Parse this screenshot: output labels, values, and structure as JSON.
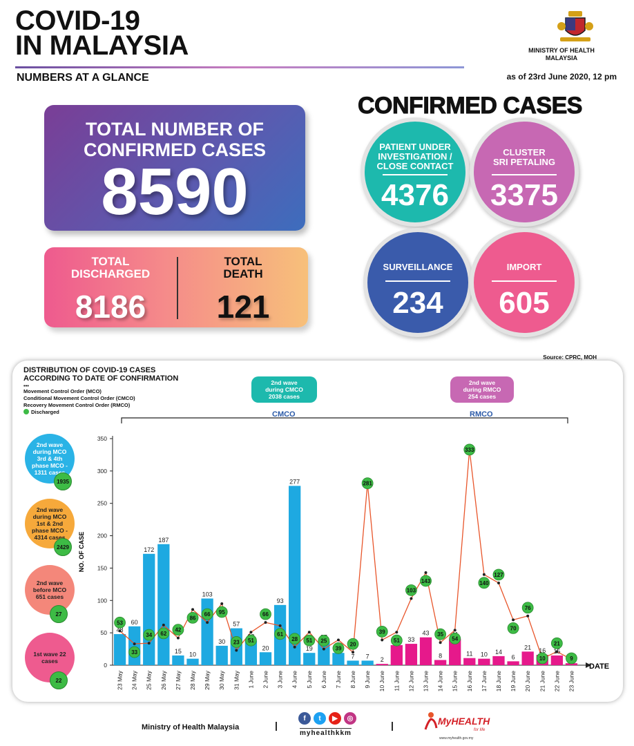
{
  "header": {
    "title_line1": "COVID-19",
    "title_line2": "IN MALAYSIA",
    "subtitle": "NUMBERS AT A GLANCE",
    "as_of": "as of 23rd June 2020, 12 pm",
    "ministry_line1": "MINISTRY OF HEALTH",
    "ministry_line2": "MALAYSIA"
  },
  "total_card": {
    "label_line1": "TOTAL NUMBER OF",
    "label_line2": "CONFIRMED CASES",
    "value": "8590"
  },
  "discharged": {
    "label_line1": "TOTAL",
    "label_line2": "DISCHARGED",
    "value": "8186"
  },
  "death": {
    "label_line1": "TOTAL",
    "label_line2": "DEATH",
    "value": "121"
  },
  "confirmed_cases": {
    "title": "CONFIRMED CASES",
    "pui": {
      "label_line1": "PATIENT UNDER",
      "label_line2": "INVESTIGATION /",
      "label_line3": "CLOSE CONTACT",
      "value": "4376",
      "color": "#1db9ad"
    },
    "cluster": {
      "label_line1": "CLUSTER",
      "label_line2": "SRI PETALING",
      "value": "3375",
      "color": "#c768b3"
    },
    "surveillance": {
      "label": "SURVEILLANCE",
      "value": "234",
      "color": "#3a5bab"
    },
    "import": {
      "label": "IMPORT",
      "value": "605",
      "color": "#ee5b8f"
    }
  },
  "source": "Source: CPRC, MOH",
  "chart_panel": {
    "title_line1": "DISTRIBUTION OF COVID-19 CASES",
    "title_line2": "ACCORDING TO DATE OF CONFIRMATION",
    "legend_marker": "•••",
    "legend_mco": "Movement Control Order (MCO)",
    "legend_cmco": "Conditional Movement Control Order (CMCO)",
    "legend_rmco": "Recovery Movement Control Order (RMCO)",
    "legend_discharged": "Discharged",
    "waves": [
      {
        "text": "2nd wave during MCO 3rd & 4th phase MCO - 1311 cases",
        "badge": "1935",
        "color": "#2ab3e6"
      },
      {
        "text": "2nd wave during MCO 1st & 2nd phase MCO - 4314 cases",
        "badge": "2429",
        "color": "#f6a93b"
      },
      {
        "text": "2nd wave before MCO 651 cases",
        "badge": "27",
        "color": "#f4877a"
      },
      {
        "text": "1st wave 22 cases",
        "badge": "22",
        "color": "#ee5b8f"
      }
    ],
    "cmco_bubble": {
      "line1": "2nd wave",
      "line2": "during CMCO",
      "line3": "2038 cases",
      "color": "#1db9ad"
    },
    "rmco_bubble": {
      "line1": "2nd wave",
      "line2": "during RMCO",
      "line3": "254 cases",
      "color": "#c768b3"
    },
    "cmco_label": "CMCO",
    "rmco_label": "RMCO"
  },
  "chart_data": {
    "type": "bar",
    "ylabel": "NO. OF CASE",
    "xlabel": "DATE",
    "ylim": [
      0,
      350
    ],
    "yticks": [
      0,
      50,
      100,
      150,
      200,
      250,
      300,
      350
    ],
    "categories": [
      "23 May",
      "24 May",
      "25 May",
      "26 May",
      "27 May",
      "28 May",
      "29 May",
      "30 May",
      "31 May",
      "1 June",
      "2 June",
      "3 June",
      "4 June",
      "5 June",
      "6 June",
      "7 June",
      "8 June",
      "9 June",
      "10 June",
      "11 June",
      "12 June",
      "13 June",
      "14 June",
      "15 June",
      "16 June",
      "17 June",
      "18 June",
      "19 June",
      "20 June",
      "21 June",
      "22 June",
      "23 June"
    ],
    "series": [
      {
        "values": [
          48,
          60,
          172,
          187,
          15,
          10,
          103,
          30,
          57,
          38,
          20,
          93,
          277,
          19,
          37,
          19,
          7,
          7,
          2,
          31,
          33,
          43,
          8,
          41,
          11,
          10,
          14,
          6,
          21,
          16,
          15,
          3
        ]
      },
      {
        "name": "Discharged",
        "values": [
          53,
          33,
          34,
          62,
          42,
          86,
          66,
          95,
          23,
          51,
          66,
          61,
          28,
          51,
          25,
          39,
          20,
          281,
          39,
          51,
          103,
          143,
          35,
          54,
          333,
          140,
          127,
          70,
          76,
          10,
          21,
          9
        ]
      }
    ],
    "bar_colors": {
      "cmco": "#1ea9e1",
      "rmco": "#e6198b"
    },
    "cmco_count": 18,
    "line_color": "#e8552a",
    "dot_color": "#3dbb45"
  },
  "footer": {
    "ministry": "Ministry of Health Malaysia",
    "separator": "|",
    "handle": "myhealthkkm",
    "brand_my": "My",
    "brand_health": "HEALTH",
    "brand_tag": "for life",
    "url": "www.myhealth.gov.my"
  }
}
